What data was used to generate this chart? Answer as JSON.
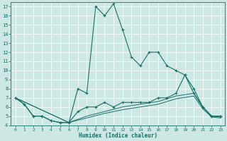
{
  "xlabel": "Humidex (Indice chaleur)",
  "bg_color": "#cde8e4",
  "line_color": "#1a6e65",
  "xlim": [
    -0.5,
    23.5
  ],
  "ylim": [
    4,
    17.5
  ],
  "xticks": [
    0,
    1,
    2,
    3,
    4,
    5,
    6,
    7,
    8,
    9,
    10,
    11,
    12,
    13,
    14,
    15,
    16,
    17,
    18,
    19,
    20,
    21,
    22,
    23
  ],
  "yticks": [
    4,
    5,
    6,
    7,
    8,
    9,
    10,
    11,
    12,
    13,
    14,
    15,
    16,
    17
  ],
  "line1_x": [
    0,
    1,
    2,
    3,
    4,
    5,
    6,
    7,
    8,
    9,
    10,
    11,
    12,
    13,
    14,
    15,
    16,
    17,
    18,
    19,
    20,
    21,
    22,
    23
  ],
  "line1_y": [
    7.0,
    6.3,
    5.0,
    5.0,
    4.5,
    4.3,
    4.3,
    8.0,
    7.5,
    17.0,
    16.0,
    17.3,
    14.5,
    11.5,
    10.5,
    12.0,
    12.0,
    10.5,
    10.0,
    9.5,
    8.0,
    6.0,
    5.0,
    5.0
  ],
  "line2_x": [
    0,
    1,
    2,
    3,
    4,
    5,
    6,
    7,
    8,
    9,
    10,
    11,
    12,
    13,
    14,
    15,
    16,
    17,
    18,
    19,
    20,
    21,
    22,
    23
  ],
  "line2_y": [
    7.0,
    6.3,
    5.0,
    5.0,
    4.5,
    4.3,
    4.3,
    5.5,
    6.0,
    6.0,
    6.5,
    6.0,
    6.5,
    6.5,
    6.5,
    6.5,
    7.0,
    7.0,
    7.5,
    9.5,
    7.5,
    6.0,
    5.0,
    5.0
  ],
  "line3_x": [
    0,
    6,
    8,
    10,
    12,
    14,
    16,
    18,
    20,
    21,
    22,
    23
  ],
  "line3_y": [
    7.0,
    4.3,
    5.0,
    5.5,
    6.0,
    6.3,
    6.6,
    7.2,
    7.5,
    6.0,
    5.0,
    4.9
  ],
  "line4_x": [
    0,
    6,
    8,
    10,
    12,
    14,
    16,
    18,
    20,
    21,
    22,
    23
  ],
  "line4_y": [
    7.0,
    4.3,
    4.8,
    5.3,
    5.7,
    6.0,
    6.3,
    6.9,
    7.2,
    5.8,
    4.9,
    4.8
  ]
}
